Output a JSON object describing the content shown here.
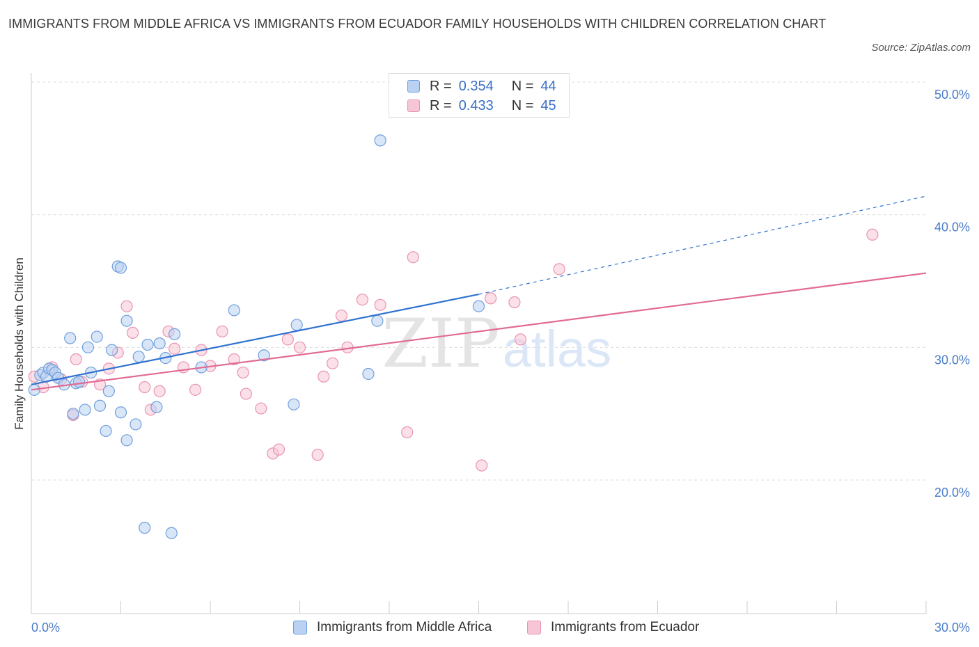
{
  "header": {
    "title": "IMMIGRANTS FROM MIDDLE AFRICA VS IMMIGRANTS FROM ECUADOR FAMILY HOUSEHOLDS WITH CHILDREN CORRELATION CHART",
    "source": "Source: ZipAtlas.com"
  },
  "legend": {
    "r_label": "R =",
    "n_label": "N =",
    "series": [
      {
        "r": "0.354",
        "n": "44"
      },
      {
        "r": "0.433",
        "n": "45"
      }
    ]
  },
  "watermark": {
    "zip": "ZIP",
    "atlas": "atlas"
  },
  "colors": {
    "blue_fill": "#b9d1f3",
    "blue_stroke": "#6f9fdc",
    "blue_line": "#2f72d0",
    "pink_fill": "#f7c6d6",
    "pink_stroke": "#e894b0",
    "pink_line": "#e06a94",
    "tick_text": "#4a7cc9",
    "grid": "#dddddd"
  },
  "chart_data": {
    "type": "scatter",
    "ylabel": "Family Households with Children",
    "xlabel": "",
    "xlim": [
      0,
      30
    ],
    "ylim": [
      10,
      50
    ],
    "x_tick_labels": [
      {
        "value": 0,
        "label": "0.0%"
      },
      {
        "value": 30,
        "label": "30.0%"
      }
    ],
    "y_tick_labels": [
      {
        "value": 20,
        "label": "20.0%"
      },
      {
        "value": 30,
        "label": "30.0%"
      },
      {
        "value": 40,
        "label": "40.0%"
      },
      {
        "value": 50,
        "label": "50.0%"
      }
    ],
    "grid": true,
    "legend_position": "top-center",
    "series": [
      {
        "name": "Immigrants from Middle Africa",
        "color": "#6f9fdc",
        "points": [
          [
            0.1,
            26.8
          ],
          [
            0.3,
            27.9
          ],
          [
            0.4,
            28.1
          ],
          [
            0.5,
            27.8
          ],
          [
            0.6,
            28.4
          ],
          [
            0.7,
            28.3
          ],
          [
            0.8,
            28.1
          ],
          [
            0.9,
            27.7
          ],
          [
            1.1,
            27.2
          ],
          [
            1.3,
            30.7
          ],
          [
            1.4,
            25.0
          ],
          [
            1.5,
            27.3
          ],
          [
            1.6,
            27.4
          ],
          [
            1.8,
            25.3
          ],
          [
            1.9,
            30.0
          ],
          [
            2.0,
            28.1
          ],
          [
            2.2,
            30.8
          ],
          [
            2.3,
            25.6
          ],
          [
            2.5,
            23.7
          ],
          [
            2.6,
            26.7
          ],
          [
            2.7,
            29.8
          ],
          [
            2.9,
            36.1
          ],
          [
            3.0,
            36.0
          ],
          [
            3.0,
            25.1
          ],
          [
            3.2,
            32.0
          ],
          [
            3.2,
            23.0
          ],
          [
            3.5,
            24.2
          ],
          [
            3.6,
            29.3
          ],
          [
            3.8,
            16.4
          ],
          [
            3.9,
            30.2
          ],
          [
            4.2,
            25.5
          ],
          [
            4.3,
            30.3
          ],
          [
            4.5,
            29.2
          ],
          [
            4.7,
            16.0
          ],
          [
            4.8,
            31.0
          ],
          [
            5.7,
            28.5
          ],
          [
            6.8,
            32.8
          ],
          [
            7.8,
            29.4
          ],
          [
            8.8,
            25.7
          ],
          [
            8.9,
            31.7
          ],
          [
            11.3,
            28.0
          ],
          [
            11.6,
            32.0
          ],
          [
            11.7,
            45.6
          ],
          [
            15.0,
            33.1
          ]
        ]
      },
      {
        "name": "Immigrants from Ecuador",
        "color": "#e894b0",
        "points": [
          [
            0.1,
            27.8
          ],
          [
            0.4,
            27.0
          ],
          [
            0.7,
            28.5
          ],
          [
            1.0,
            27.6
          ],
          [
            1.4,
            24.9
          ],
          [
            1.5,
            29.1
          ],
          [
            1.7,
            27.4
          ],
          [
            2.3,
            27.2
          ],
          [
            2.6,
            28.4
          ],
          [
            2.9,
            29.6
          ],
          [
            3.2,
            33.1
          ],
          [
            3.4,
            31.1
          ],
          [
            3.8,
            27.0
          ],
          [
            4.0,
            25.3
          ],
          [
            4.3,
            26.7
          ],
          [
            4.6,
            31.2
          ],
          [
            4.8,
            29.9
          ],
          [
            5.1,
            28.5
          ],
          [
            5.5,
            26.8
          ],
          [
            5.7,
            29.8
          ],
          [
            6.0,
            28.6
          ],
          [
            6.4,
            31.2
          ],
          [
            6.8,
            29.1
          ],
          [
            7.1,
            28.1
          ],
          [
            7.2,
            26.5
          ],
          [
            7.7,
            25.4
          ],
          [
            8.1,
            22.0
          ],
          [
            8.3,
            22.3
          ],
          [
            8.6,
            30.6
          ],
          [
            9.0,
            30.0
          ],
          [
            9.6,
            21.9
          ],
          [
            9.8,
            27.8
          ],
          [
            10.1,
            28.8
          ],
          [
            10.4,
            32.4
          ],
          [
            10.6,
            30.0
          ],
          [
            11.1,
            33.6
          ],
          [
            11.7,
            33.2
          ],
          [
            12.6,
            23.6
          ],
          [
            12.8,
            36.8
          ],
          [
            15.1,
            21.1
          ],
          [
            15.4,
            33.7
          ],
          [
            16.2,
            33.4
          ],
          [
            16.4,
            30.6
          ],
          [
            17.7,
            35.9
          ],
          [
            28.2,
            38.5
          ]
        ]
      }
    ],
    "trend_lines": [
      {
        "series": "Immigrants from Middle Africa",
        "solid": [
          [
            0,
            27.2
          ],
          [
            15,
            34.0
          ]
        ],
        "dashed": [
          [
            15,
            34.0
          ],
          [
            30,
            41.4
          ]
        ]
      },
      {
        "series": "Immigrants from Ecuador",
        "solid": [
          [
            0,
            26.8
          ],
          [
            30,
            35.6
          ]
        ]
      }
    ]
  }
}
